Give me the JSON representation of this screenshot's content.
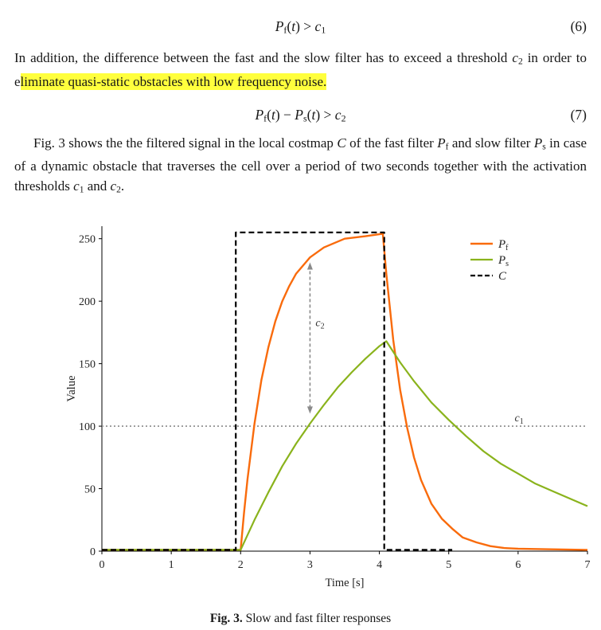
{
  "colors": {
    "highlight": "#ffff3d",
    "fast_filter": "#f96b0c",
    "slow_filter": "#8ab31c",
    "costmap": "#000000",
    "threshold_grey": "#999999",
    "arrow_grey": "#8a8a8a"
  },
  "equations": {
    "eq6": {
      "number": "(6)",
      "tokens": [
        {
          "t": "P",
          "s": "it"
        },
        {
          "t": "f",
          "s": "sub"
        },
        {
          "t": "(",
          "s": "rm"
        },
        {
          "t": "t",
          "s": "it"
        },
        {
          "t": ")",
          "s": "rm"
        },
        {
          "t": " > ",
          "s": "rm"
        },
        {
          "t": "c",
          "s": "it"
        },
        {
          "t": "1",
          "s": "sub"
        }
      ]
    },
    "eq7": {
      "number": "(7)",
      "tokens": [
        {
          "t": "P",
          "s": "it"
        },
        {
          "t": "f",
          "s": "sub"
        },
        {
          "t": "(",
          "s": "rm"
        },
        {
          "t": "t",
          "s": "it"
        },
        {
          "t": ")",
          "s": "rm"
        },
        {
          "t": " − ",
          "s": "rm"
        },
        {
          "t": "P",
          "s": "it"
        },
        {
          "t": "s",
          "s": "sub"
        },
        {
          "t": "(",
          "s": "rm"
        },
        {
          "t": "t",
          "s": "it"
        },
        {
          "t": ")",
          "s": "rm"
        },
        {
          "t": " > ",
          "s": "rm"
        },
        {
          "t": "c",
          "s": "it"
        },
        {
          "t": "2",
          "s": "sub"
        }
      ]
    }
  },
  "document": {
    "paragraph1_tokens": [
      {
        "t": "In addition, the difference between the fast and the slow filter has to exceed a threshold ",
        "s": "rm"
      },
      {
        "t": "c",
        "s": "it"
      },
      {
        "t": "2",
        "s": "sub"
      },
      {
        "t": " in order to e",
        "s": "rm"
      },
      {
        "t": "liminate quasi-static obstacles with low frequency noise.",
        "s": "hl"
      }
    ],
    "paragraph2_tokens": [
      {
        "t": "Fig. 3 shows the the filtered signal in the local costmap ",
        "s": "rm"
      },
      {
        "t": "C",
        "s": "it"
      },
      {
        "t": " of the fast filter ",
        "s": "rm"
      },
      {
        "t": "P",
        "s": "it"
      },
      {
        "t": "f",
        "s": "sub"
      },
      {
        "t": " and slow filter ",
        "s": "rm"
      },
      {
        "t": "P",
        "s": "it"
      },
      {
        "t": "s",
        "s": "sub"
      },
      {
        "t": " in case of a dynamic obstacle that traverses the cell over a period of two seconds together with the activation thresholds ",
        "s": "rm"
      },
      {
        "t": "c",
        "s": "it"
      },
      {
        "t": "1",
        "s": "sub"
      },
      {
        "t": " and ",
        "s": "rm"
      },
      {
        "t": "c",
        "s": "it"
      },
      {
        "t": "2",
        "s": "sub"
      },
      {
        "t": ".",
        "s": "rm"
      }
    ],
    "caption_tokens": [
      {
        "t": "Fig. 3.",
        "s": "bf"
      },
      {
        "t": " Slow and fast filter responses",
        "s": "rm"
      }
    ]
  },
  "chart_data": {
    "type": "line",
    "title": "",
    "xlabel": "Time [s]",
    "ylabel": "Value",
    "xlim": [
      0,
      7
    ],
    "ylim": [
      0,
      260
    ],
    "xticks": [
      0,
      1,
      2,
      3,
      4,
      5,
      6,
      7
    ],
    "yticks": [
      0,
      50,
      100,
      150,
      200,
      250
    ],
    "grid": false,
    "series": [
      {
        "name": "Pf",
        "label_main": "P",
        "label_sub": "f",
        "color": "#f96b0c",
        "dash": "",
        "width": 2.4,
        "points": [
          [
            0,
            1
          ],
          [
            1.9,
            1
          ],
          [
            2,
            1
          ],
          [
            2.05,
            31
          ],
          [
            2.1,
            58
          ],
          [
            2.2,
            102
          ],
          [
            2.3,
            137
          ],
          [
            2.4,
            163
          ],
          [
            2.5,
            184
          ],
          [
            2.6,
            200
          ],
          [
            2.7,
            212
          ],
          [
            2.8,
            222
          ],
          [
            3,
            235
          ],
          [
            3.2,
            243
          ],
          [
            3.5,
            250
          ],
          [
            3.8,
            252
          ],
          [
            4.05,
            254
          ],
          [
            4.1,
            222
          ],
          [
            4.2,
            169
          ],
          [
            4.3,
            129
          ],
          [
            4.4,
            99
          ],
          [
            4.5,
            75
          ],
          [
            4.6,
            57
          ],
          [
            4.75,
            38
          ],
          [
            4.9,
            26
          ],
          [
            5.05,
            18
          ],
          [
            5.2,
            11
          ],
          [
            5.4,
            7
          ],
          [
            5.6,
            4
          ],
          [
            5.8,
            2.5
          ],
          [
            6,
            2
          ],
          [
            6.4,
            1.5
          ],
          [
            7,
            1
          ]
        ]
      },
      {
        "name": "Ps",
        "label_main": "P",
        "label_sub": "s",
        "color": "#8ab31c",
        "dash": "",
        "width": 2.2,
        "points": [
          [
            0,
            1
          ],
          [
            1.95,
            1
          ],
          [
            2,
            1
          ],
          [
            2.2,
            25
          ],
          [
            2.4,
            47
          ],
          [
            2.6,
            68
          ],
          [
            2.8,
            86
          ],
          [
            3,
            102
          ],
          [
            3.2,
            117
          ],
          [
            3.4,
            131
          ],
          [
            3.6,
            143
          ],
          [
            3.8,
            154
          ],
          [
            4,
            164
          ],
          [
            4.1,
            168
          ],
          [
            4.3,
            151
          ],
          [
            4.5,
            136
          ],
          [
            4.75,
            119
          ],
          [
            5,
            105
          ],
          [
            5.25,
            92
          ],
          [
            5.5,
            80
          ],
          [
            5.75,
            70
          ],
          [
            6,
            62
          ],
          [
            6.25,
            54
          ],
          [
            6.5,
            48
          ],
          [
            6.75,
            42
          ],
          [
            7,
            36
          ]
        ]
      },
      {
        "name": "C",
        "label_main": "C",
        "label_sub": "",
        "color": "#000000",
        "dash": "7,4",
        "width": 2.2,
        "points": [
          [
            0,
            1
          ],
          [
            1.93,
            1
          ],
          [
            1.93,
            255
          ],
          [
            4.07,
            255
          ],
          [
            4.07,
            1
          ],
          [
            5.05,
            1
          ]
        ]
      }
    ],
    "annotations": {
      "c1_line": {
        "y": 100,
        "color": "#999999",
        "style": "dotted",
        "label_main": "c",
        "label_sub": "1",
        "label_pos": [
          5.95,
          104
        ]
      },
      "c2_arrow": {
        "x": 3,
        "y_from": 110,
        "y_to": 231,
        "color": "#8a8a8a",
        "style": "dashed-double-arrow",
        "label_main": "c",
        "label_sub": "2",
        "label_pos": [
          3.08,
          180
        ]
      }
    },
    "legend": {
      "position": "top-right",
      "entries": [
        {
          "name": "Pf",
          "label_main": "P",
          "label_sub": "f",
          "color": "#f96b0c",
          "dash": "",
          "line_width": 2.4
        },
        {
          "name": "Ps",
          "label_main": "P",
          "label_sub": "s",
          "color": "#8ab31c",
          "dash": "",
          "line_width": 2.2
        },
        {
          "name": "C",
          "label_main": "C",
          "label_sub": "",
          "color": "#000000",
          "dash": "6,3",
          "line_width": 2.2
        }
      ]
    }
  }
}
